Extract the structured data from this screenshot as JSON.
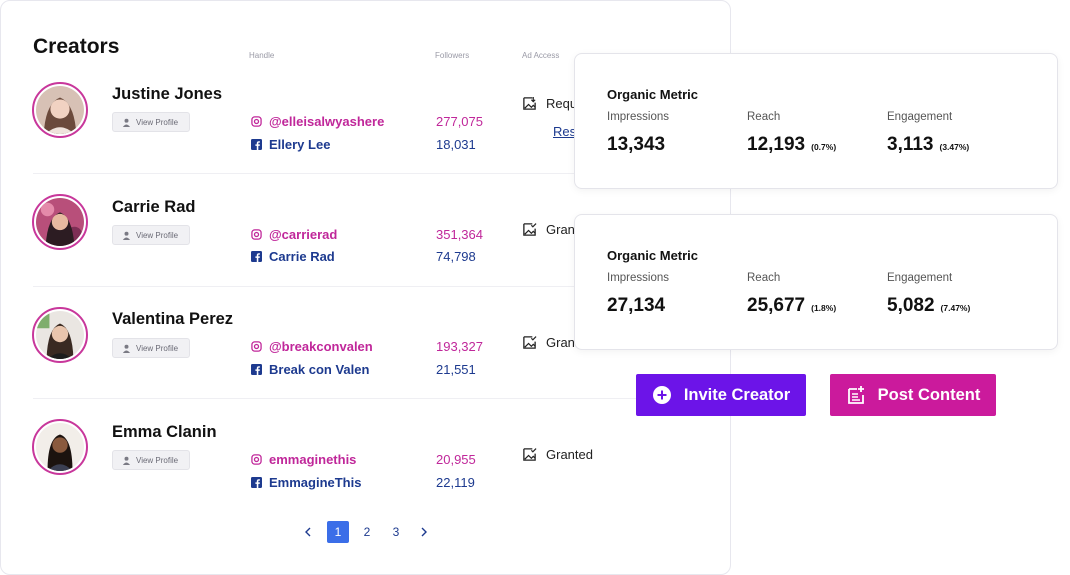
{
  "header": {
    "title": "Creators",
    "col_handle": "Handle",
    "col_followers": "Followers",
    "col_ad_access": "Ad Access"
  },
  "view_profile_label": "View Profile",
  "colors": {
    "instagram": "#c0279a",
    "facebook": "#1d3a8f",
    "invite": "#6c14e8",
    "post": "#cb1a9c",
    "page_active": "#3b6ee8"
  },
  "creators": [
    {
      "name": "Justine Jones",
      "instagram": "@elleisalwyashere",
      "instagram_followers": "277,075",
      "facebook": "Ellery Lee",
      "facebook_followers": "18,031",
      "access": "Requ",
      "access_link": "Res"
    },
    {
      "name": "Carrie Rad",
      "instagram": "@carrierad",
      "instagram_followers": "351,364",
      "facebook": "Carrie Rad",
      "facebook_followers": "74,798",
      "access": "Gran"
    },
    {
      "name": "Valentina Perez",
      "instagram": "@breakconvalen",
      "instagram_followers": "193,327",
      "facebook": "Break con Valen",
      "facebook_followers": "21,551",
      "access": "Gran"
    },
    {
      "name": "Emma Clanin",
      "instagram": "emmaginethis",
      "instagram_followers": "20,955",
      "facebook": "EmmagineThis",
      "facebook_followers": "22,119",
      "access": "Granted"
    }
  ],
  "pagination": {
    "pages": [
      "1",
      "2",
      "3"
    ],
    "current": "1"
  },
  "metric_cards": [
    {
      "title": "Organic Metric",
      "impressions_label": "Impressions",
      "impressions": "13,343",
      "reach_label": "Reach",
      "reach": "12,193",
      "reach_pct": "(0.7%)",
      "engagement_label": "Engagement",
      "engagement": "3,113",
      "engagement_pct": "(3.47%)"
    },
    {
      "title": "Organic Metric",
      "impressions_label": "Impressions",
      "impressions": "27,134",
      "reach_label": "Reach",
      "reach": "25,677",
      "reach_pct": "(1.8%)",
      "engagement_label": "Engagement",
      "engagement": "5,082",
      "engagement_pct": "(7.47%)"
    }
  ],
  "actions": {
    "invite_label": "Invite Creator",
    "post_label": "Post Content"
  }
}
